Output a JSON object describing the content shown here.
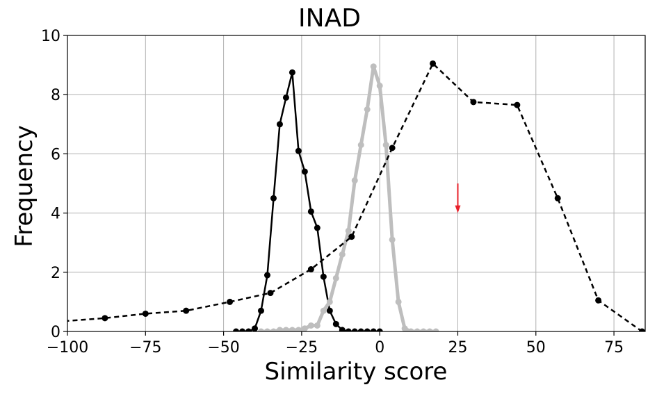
{
  "chart_data": {
    "type": "line",
    "title": "INAD",
    "xlabel": "Similarity score",
    "ylabel": "Frequency",
    "xlim": [
      -100,
      85
    ],
    "ylim": [
      0,
      10
    ],
    "xticks": [
      -100,
      -75,
      -50,
      -25,
      0,
      25,
      50,
      75
    ],
    "xtick_labels": [
      "−100",
      "−75",
      "−50",
      "−25",
      "0",
      "25",
      "50",
      "75"
    ],
    "yticks": [
      0,
      2,
      4,
      6,
      8,
      10
    ],
    "ytick_labels": [
      "0",
      "2",
      "4",
      "6",
      "8",
      "10"
    ],
    "grid": true,
    "legend": "none",
    "series": [
      {
        "style": "solid-black",
        "color": "#000000",
        "x": [
          -46,
          -44,
          -42,
          -40,
          -38,
          -36,
          -34,
          -32,
          -30,
          -28,
          -26,
          -24,
          -22,
          -20,
          -18,
          -16,
          -14,
          -12,
          -10,
          -8,
          -6,
          -4,
          -2,
          0
        ],
        "y": [
          0.0,
          0.0,
          0.0,
          0.1,
          0.7,
          1.9,
          4.5,
          7.0,
          7.9,
          8.75,
          6.1,
          5.4,
          4.05,
          3.5,
          1.85,
          0.7,
          0.25,
          0.05,
          0.0,
          0.0,
          0.0,
          0.0,
          0.0,
          0.0
        ]
      },
      {
        "style": "thick-gray",
        "color": "#bebebe",
        "x": [
          -38,
          -36,
          -34,
          -32,
          -30,
          -28,
          -26,
          -24,
          -22,
          -20,
          -18,
          -16,
          -14,
          -12,
          -10,
          -8,
          -6,
          -4,
          -2,
          0,
          2,
          4,
          6,
          8,
          10,
          12,
          14,
          16,
          18
        ],
        "y": [
          0.0,
          0.0,
          0.0,
          0.05,
          0.05,
          0.05,
          0.05,
          0.1,
          0.2,
          0.2,
          0.7,
          1.0,
          1.8,
          2.6,
          3.4,
          5.1,
          6.3,
          7.5,
          8.95,
          8.3,
          6.3,
          3.1,
          1.0,
          0.1,
          0.0,
          0.0,
          0.0,
          0.0,
          0.0
        ]
      },
      {
        "style": "dashed-black",
        "color": "#000000",
        "x": [
          -101,
          -88,
          -75,
          -62,
          -48,
          -35,
          -22,
          -9,
          4,
          17,
          30,
          44,
          57,
          70,
          84
        ],
        "y": [
          0.35,
          0.45,
          0.6,
          0.7,
          1.0,
          1.3,
          2.1,
          3.2,
          6.2,
          9.05,
          7.75,
          7.65,
          4.5,
          1.05,
          0.0
        ]
      }
    ],
    "annotations": [
      {
        "type": "arrow",
        "color": "#e8202a",
        "x": 25,
        "y_from": 5.0,
        "y_to": 4.0
      }
    ]
  }
}
